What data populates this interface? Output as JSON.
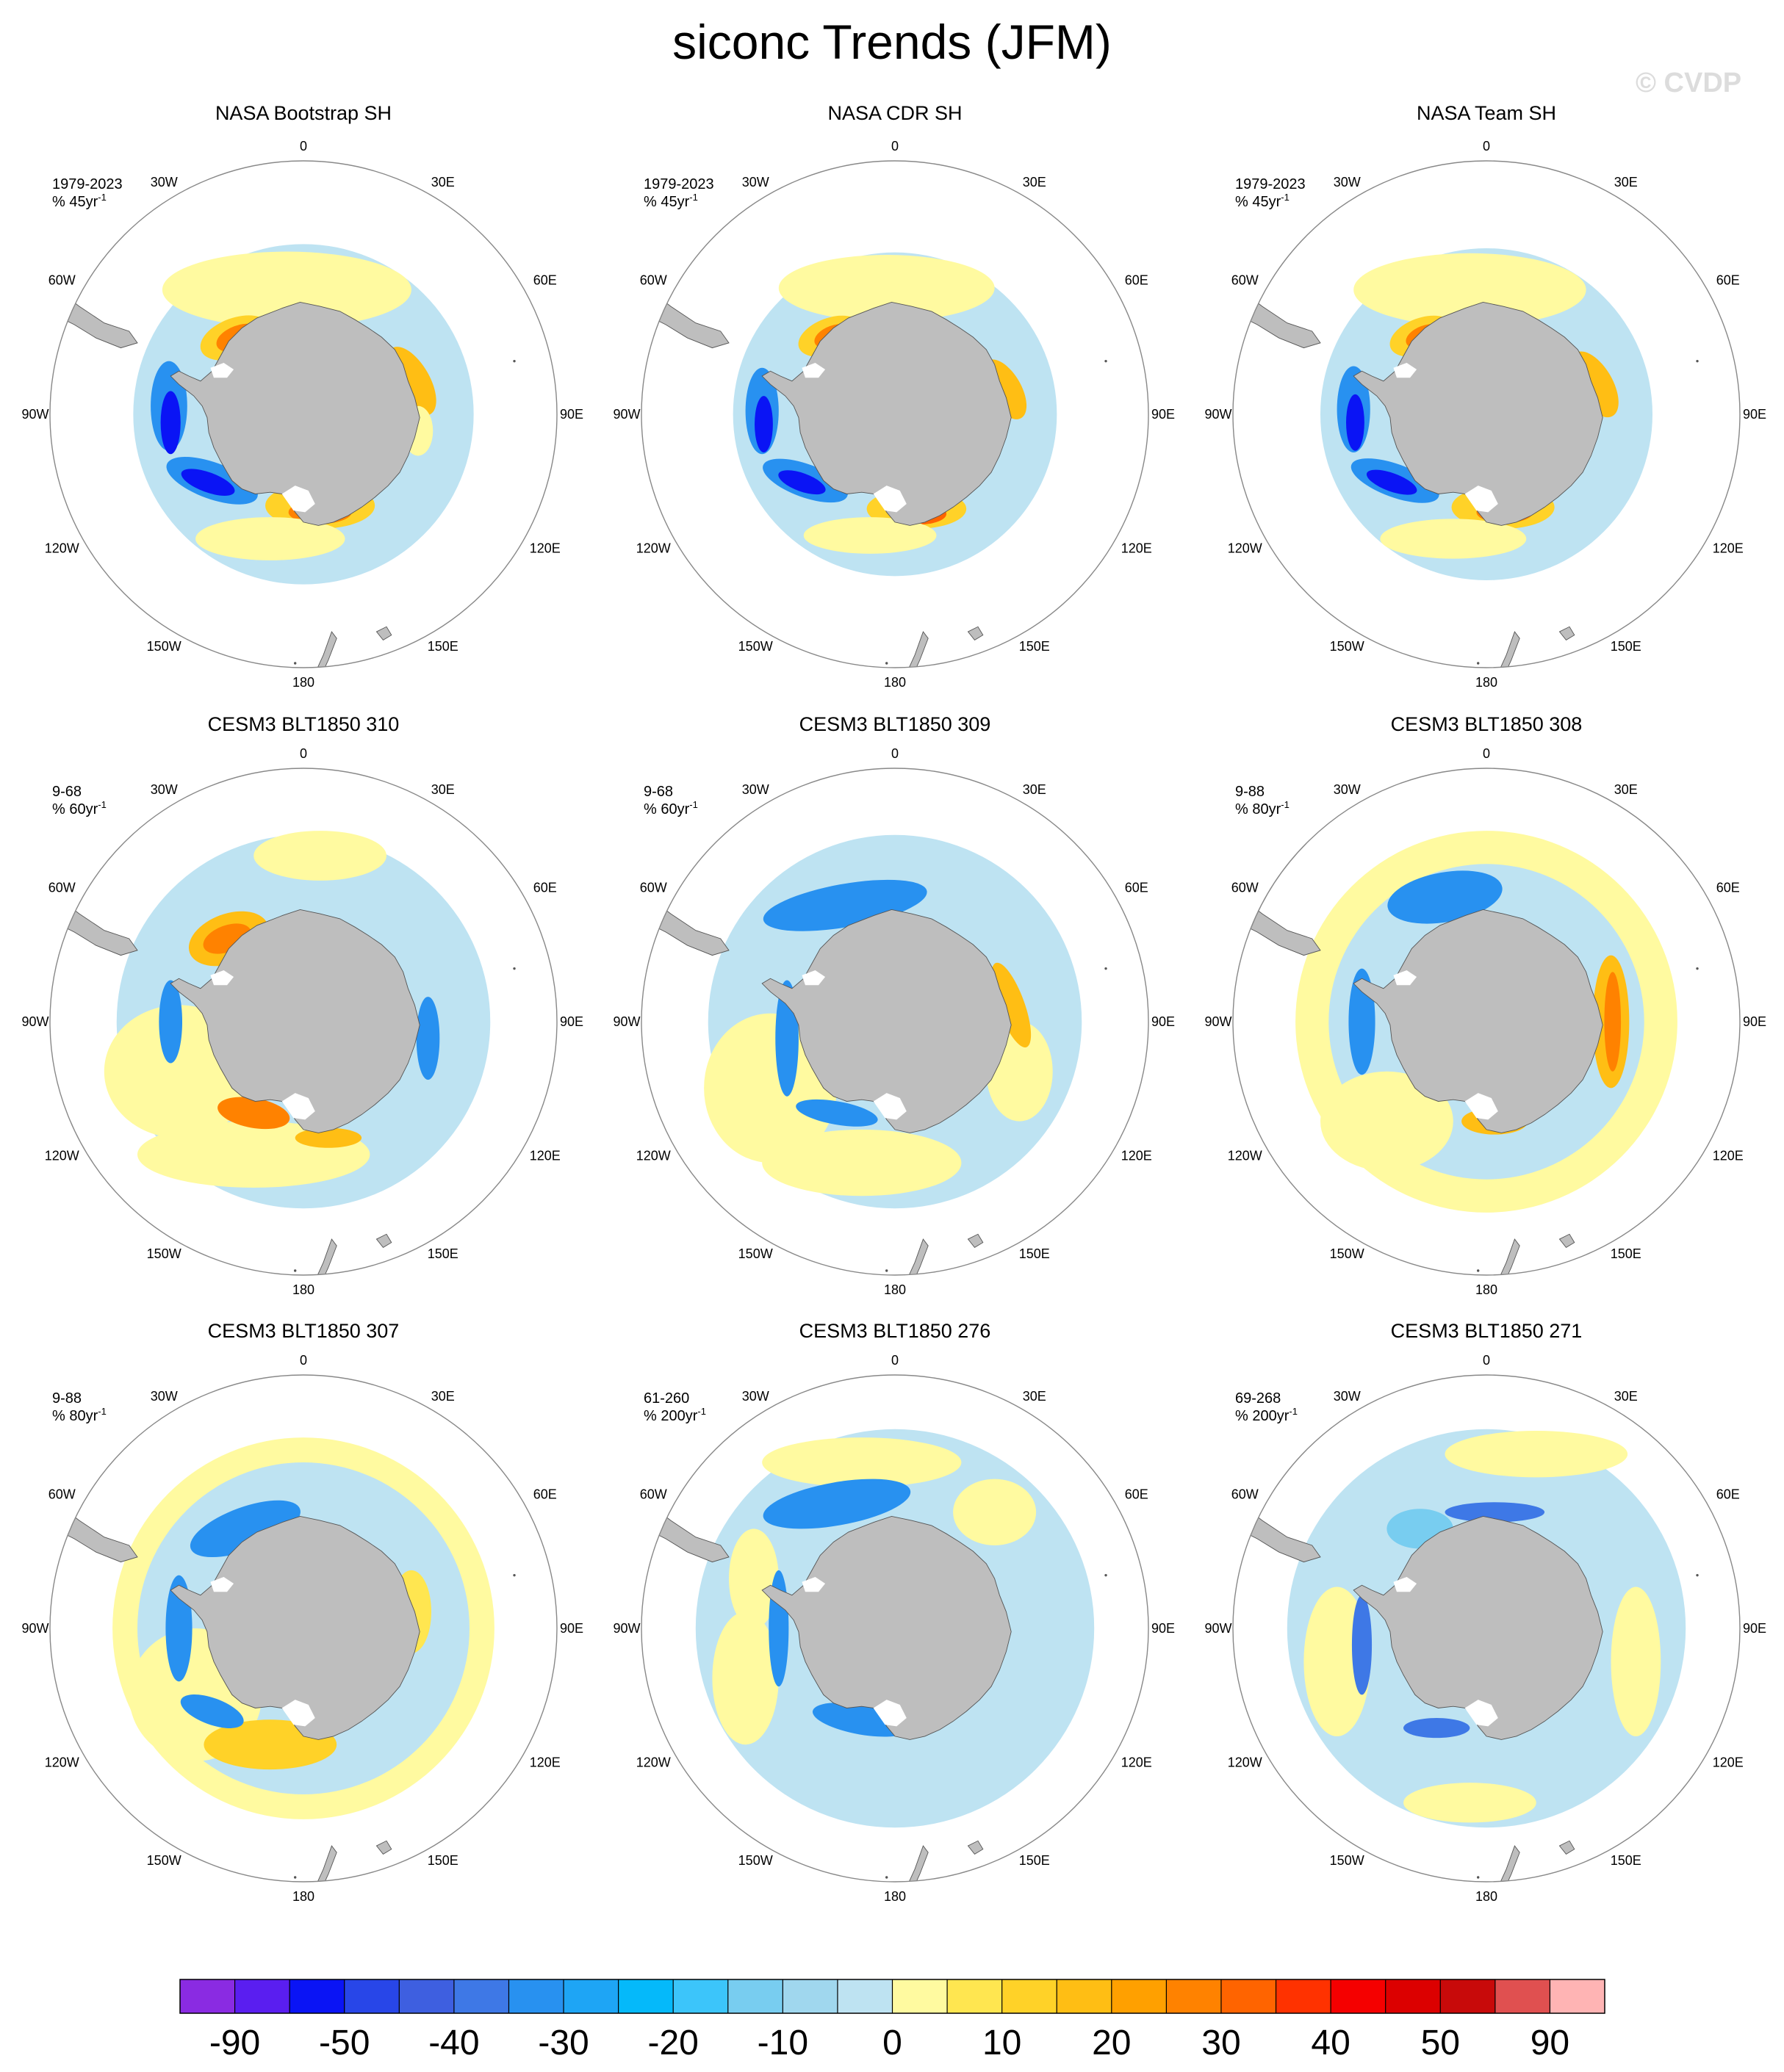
{
  "title": "siconc Trends (JFM)",
  "watermark": "© CVDP",
  "longitude_labels": [
    "0",
    "30E",
    "60E",
    "90E",
    "120E",
    "150E",
    "180",
    "150W",
    "120W",
    "90W",
    "60W",
    "30W"
  ],
  "panels": [
    {
      "title": "NASA Bootstrap SH",
      "period": "1979-2023",
      "unit_prefix": "% 45yr",
      "unit_exp": "-1",
      "pattern": "obs1"
    },
    {
      "title": "NASA CDR SH",
      "period": "1979-2023",
      "unit_prefix": "% 45yr",
      "unit_exp": "-1",
      "pattern": "obs2"
    },
    {
      "title": "NASA Team SH",
      "period": "1979-2023",
      "unit_prefix": "% 45yr",
      "unit_exp": "-1",
      "pattern": "obs3"
    },
    {
      "title": "CESM3 BLT1850 310",
      "period": "9-68",
      "unit_prefix": "% 60yr",
      "unit_exp": "-1",
      "pattern": "m310"
    },
    {
      "title": "CESM3 BLT1850 309",
      "period": "9-68",
      "unit_prefix": "% 60yr",
      "unit_exp": "-1",
      "pattern": "m309"
    },
    {
      "title": "CESM3 BLT1850 308",
      "period": "9-88",
      "unit_prefix": "% 80yr",
      "unit_exp": "-1",
      "pattern": "m308"
    },
    {
      "title": "CESM3 BLT1850 307",
      "period": "9-88",
      "unit_prefix": "% 80yr",
      "unit_exp": "-1",
      "pattern": "m307"
    },
    {
      "title": "CESM3 BLT1850 276",
      "period": "61-260",
      "unit_prefix": "% 200yr",
      "unit_exp": "-1",
      "pattern": "m276"
    },
    {
      "title": "CESM3 BLT1850 271",
      "period": "69-268",
      "unit_prefix": "% 200yr",
      "unit_exp": "-1",
      "pattern": "m271"
    }
  ],
  "colorbar": {
    "colors": [
      "#8a2be2",
      "#5a1ef0",
      "#0a14f5",
      "#2846e8",
      "#3e5fe0",
      "#3e78e6",
      "#2891f0",
      "#1ea5f5",
      "#05b9fa",
      "#3cc5fa",
      "#78cdf0",
      "#a0d7ee",
      "#bee3f2",
      "#fffaa0",
      "#ffe650",
      "#ffd228",
      "#ffbe14",
      "#ffa000",
      "#ff8200",
      "#ff6400",
      "#ff3200",
      "#f50000",
      "#dc0000",
      "#c80a0a",
      "#e05050",
      "#ffb4b4"
    ],
    "labels": [
      "-90",
      "-50",
      "-40",
      "-30",
      "-20",
      "-10",
      "0",
      "10",
      "20",
      "30",
      "40",
      "50",
      "90"
    ]
  },
  "land_color": "#bebebe"
}
